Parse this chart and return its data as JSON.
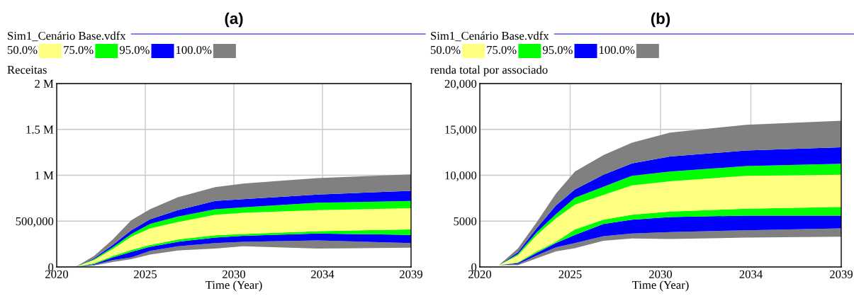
{
  "chart_data": [
    {
      "type": "area",
      "stacked": true,
      "title": "(a)",
      "legend_title": "Sim1_Cenário Base.vdfx",
      "ylabel": "Receitas",
      "xlabel": "Time (Year)",
      "x": [
        2020,
        2021,
        2022,
        2023,
        2024,
        2025,
        2026.5,
        2028.5,
        2030,
        2034,
        2039
      ],
      "series": [
        {
          "color": "#ffffff",
          "values": [
            0,
            0,
            15000,
            54000,
            85000,
            135000,
            180000,
            200000,
            225000,
            200000,
            210000
          ]
        },
        {
          "color": "#808080",
          "values": [
            0,
            0,
            9000,
            21000,
            20000,
            40000,
            45000,
            60000,
            50000,
            90000,
            50000
          ]
        },
        {
          "color": "#0000ff",
          "values": [
            0,
            0,
            6000,
            30000,
            60000,
            45000,
            50000,
            60000,
            65000,
            75000,
            90000
          ]
        },
        {
          "color": "#00ff00",
          "values": [
            0,
            0,
            10000,
            15000,
            20000,
            20000,
            25000,
            25000,
            20000,
            25000,
            60000
          ]
        },
        {
          "name": "50.0%",
          "color": "#ffff80",
          "values": [
            0,
            0,
            35000,
            75000,
            145000,
            180000,
            190000,
            225000,
            230000,
            230000,
            230000
          ]
        },
        {
          "name": "75.0%",
          "color": "#00ff00",
          "values": [
            0,
            0,
            9000,
            20000,
            30000,
            50000,
            60000,
            60000,
            60000,
            80000,
            80000
          ]
        },
        {
          "name": "95.0%",
          "color": "#0000ff",
          "values": [
            0,
            0,
            11000,
            25000,
            40000,
            50000,
            70000,
            90000,
            90000,
            90000,
            110000
          ]
        },
        {
          "name": "100.0%",
          "color": "#808080",
          "values": [
            0,
            0,
            25000,
            60000,
            110000,
            110000,
            140000,
            150000,
            170000,
            180000,
            180000
          ]
        }
      ],
      "xlim": [
        2020,
        2039
      ],
      "xticks": [
        2020,
        {
          "value": 2024.75,
          "label": "2025"
        },
        {
          "value": 2029.5,
          "label": "2030"
        },
        {
          "value": 2034.25,
          "label": "2034"
        },
        2039
      ],
      "ylim": [
        0,
        2000000
      ],
      "yticks": [
        {
          "value": 0,
          "label": "0"
        },
        {
          "value": 500000,
          "label": "500,000"
        },
        {
          "value": 1000000,
          "label": "1 M"
        },
        {
          "value": 1500000,
          "label": "1.5 M"
        },
        {
          "value": 2000000,
          "label": "2 M"
        }
      ],
      "grid": true,
      "legend": "top left"
    },
    {
      "type": "area",
      "stacked": true,
      "title": "(b)",
      "legend_title": "Sim1_Cenário Base.vdfx",
      "ylabel": "renda total por associado",
      "xlabel": "Time (Year)",
      "x": [
        2020,
        2021,
        2022,
        2023,
        2024,
        2025,
        2026.5,
        2028,
        2030,
        2034,
        2039
      ],
      "series": [
        {
          "color": "#ffffff",
          "values": [
            0,
            200,
            200,
            950,
            1700,
            2050,
            2850,
            3100,
            3050,
            3200,
            3300
          ]
        },
        {
          "color": "#808080",
          "values": [
            0,
            0,
            100,
            300,
            450,
            550,
            500,
            550,
            750,
            800,
            900
          ]
        },
        {
          "color": "#0000ff",
          "values": [
            0,
            0,
            120,
            300,
            450,
            900,
            1350,
            1500,
            1650,
            1600,
            1400
          ]
        },
        {
          "color": "#00ff00",
          "values": [
            0,
            0,
            80,
            150,
            150,
            600,
            450,
            550,
            600,
            750,
            950
          ]
        },
        {
          "name": "50.0%",
          "color": "#ffff80",
          "values": [
            0,
            0,
            750,
            1800,
            2550,
            2700,
            2700,
            3200,
            3300,
            3600,
            3500
          ]
        },
        {
          "name": "75.0%",
          "color": "#00ff00",
          "values": [
            0,
            0,
            150,
            300,
            450,
            750,
            900,
            1050,
            1050,
            1050,
            1200
          ]
        },
        {
          "name": "95.0%",
          "color": "#0000ff",
          "values": [
            0,
            0,
            200,
            450,
            950,
            900,
            1300,
            1350,
            1650,
            1700,
            1800
          ]
        },
        {
          "name": "100.0%",
          "color": "#808080",
          "values": [
            0,
            0,
            400,
            650,
            1300,
            1950,
            2150,
            2250,
            2600,
            2800,
            2900
          ]
        }
      ],
      "xlim": [
        2020,
        2039
      ],
      "xticks": [
        2020,
        {
          "value": 2024.75,
          "label": "2025"
        },
        {
          "value": 2029.5,
          "label": "2030"
        },
        {
          "value": 2034.25,
          "label": "2034"
        },
        2039
      ],
      "ylim": [
        0,
        20000
      ],
      "yticks": [
        0,
        5000,
        {
          "value": 10000,
          "label": "10,000"
        },
        {
          "value": 15000,
          "label": "15,000"
        },
        {
          "value": 20000,
          "label": "20,000"
        }
      ],
      "grid": true,
      "legend": "top left"
    }
  ]
}
